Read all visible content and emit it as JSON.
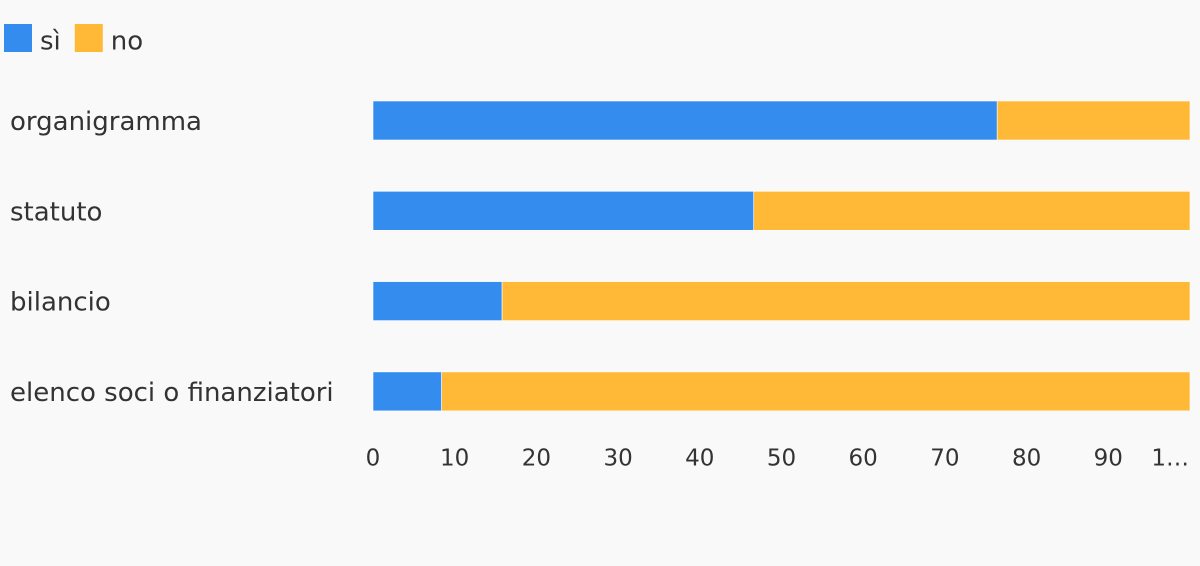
{
  "chart_data": {
    "type": "stacked-bar-horizontal",
    "categories": [
      "organigramma",
      "statuto",
      "bilancio",
      "elenco soci o finanziatori"
    ],
    "series": [
      {
        "name": "sì",
        "color": "#348cee",
        "values": [
          76.4,
          46.6,
          15.8,
          8.4
        ]
      },
      {
        "name": "no",
        "color": "#ffb937",
        "values": [
          23.6,
          53.4,
          84.2,
          91.6
        ]
      }
    ],
    "xlim": [
      0,
      100
    ],
    "xticks": [
      0,
      10,
      20,
      30,
      40,
      50,
      60,
      70,
      80,
      90,
      {
        "value": 100,
        "label": "1…"
      }
    ],
    "legend": "top-left"
  }
}
